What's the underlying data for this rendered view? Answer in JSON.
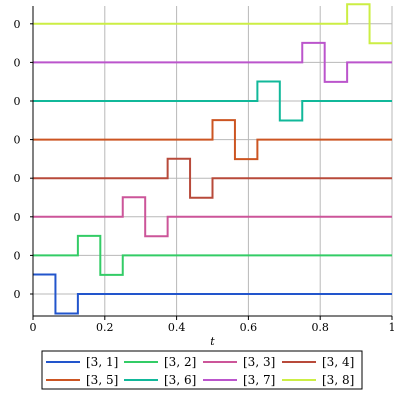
{
  "chart_data": {
    "type": "line",
    "title": "",
    "xlabel": "t",
    "ylabel": "",
    "xlim": [
      0,
      1
    ],
    "x_ticks": [
      "0",
      "0.2",
      "0.4",
      "0.6",
      "0.8",
      "1"
    ],
    "grid": true,
    "legend_position": "bottom",
    "series": [
      {
        "name": "[3, 1]",
        "color": "#2255cc",
        "baseline_label": "0",
        "points": [
          [
            0,
            0.5
          ],
          [
            0.0625,
            0.5
          ],
          [
            0.0625,
            -0.5
          ],
          [
            0.125,
            -0.5
          ],
          [
            0.125,
            0
          ],
          [
            1,
            0
          ]
        ]
      },
      {
        "name": "[3, 2]",
        "color": "#33cc66",
        "baseline_label": "0",
        "points": [
          [
            0,
            0
          ],
          [
            0.125,
            0
          ],
          [
            0.125,
            0.5
          ],
          [
            0.1875,
            0.5
          ],
          [
            0.1875,
            -0.5
          ],
          [
            0.25,
            -0.5
          ],
          [
            0.25,
            0
          ],
          [
            1,
            0
          ]
        ]
      },
      {
        "name": "[3, 3]",
        "color": "#cc5599",
        "baseline_label": "0",
        "points": [
          [
            0,
            0
          ],
          [
            0.25,
            0
          ],
          [
            0.25,
            0.5
          ],
          [
            0.3125,
            0.5
          ],
          [
            0.3125,
            -0.5
          ],
          [
            0.375,
            -0.5
          ],
          [
            0.375,
            0
          ],
          [
            1,
            0
          ]
        ]
      },
      {
        "name": "[3, 4]",
        "color": "#b84a3a",
        "baseline_label": "0",
        "points": [
          [
            0,
            0
          ],
          [
            0.375,
            0
          ],
          [
            0.375,
            0.5
          ],
          [
            0.4375,
            0.5
          ],
          [
            0.4375,
            -0.5
          ],
          [
            0.5,
            -0.5
          ],
          [
            0.5,
            0
          ],
          [
            1,
            0
          ]
        ]
      },
      {
        "name": "[3, 5]",
        "color": "#cc5522",
        "baseline_label": "0",
        "points": [
          [
            0,
            0
          ],
          [
            0.5,
            0
          ],
          [
            0.5,
            0.5
          ],
          [
            0.5625,
            0.5
          ],
          [
            0.5625,
            -0.5
          ],
          [
            0.625,
            -0.5
          ],
          [
            0.625,
            0
          ],
          [
            1,
            0
          ]
        ]
      },
      {
        "name": "[3, 6]",
        "color": "#11b89a",
        "baseline_label": "0",
        "points": [
          [
            0,
            0
          ],
          [
            0.625,
            0
          ],
          [
            0.625,
            0.5
          ],
          [
            0.6875,
            0.5
          ],
          [
            0.6875,
            -0.5
          ],
          [
            0.75,
            -0.5
          ],
          [
            0.75,
            0
          ],
          [
            1,
            0
          ]
        ]
      },
      {
        "name": "[3, 7]",
        "color": "#bb55cc",
        "baseline_label": "0",
        "points": [
          [
            0,
            0
          ],
          [
            0.75,
            0
          ],
          [
            0.75,
            0.5
          ],
          [
            0.8125,
            0.5
          ],
          [
            0.8125,
            -0.5
          ],
          [
            0.875,
            -0.5
          ],
          [
            0.875,
            0
          ],
          [
            1,
            0
          ]
        ]
      },
      {
        "name": "[3, 8]",
        "color": "#ccee44",
        "baseline_label": "0",
        "points": [
          [
            0,
            0
          ],
          [
            0.875,
            0
          ],
          [
            0.875,
            0.5
          ],
          [
            0.9375,
            0.5
          ],
          [
            0.9375,
            -0.5
          ],
          [
            1,
            -0.5
          ]
        ]
      }
    ]
  }
}
